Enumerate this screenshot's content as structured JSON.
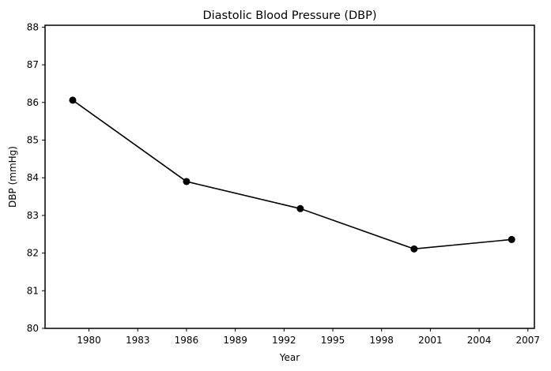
{
  "chart_data": {
    "type": "line",
    "title": "Diastolic Blood Pressure (DBP)",
    "xlabel": "Year",
    "ylabel": "DBP (mmHg)",
    "xlim": [
      1977.3,
      2007.4
    ],
    "ylim": [
      80,
      88.05
    ],
    "x_ticks": [
      1980,
      1983,
      1986,
      1989,
      1992,
      1995,
      1998,
      2001,
      2004,
      2007
    ],
    "y_ticks": [
      80,
      81,
      82,
      83,
      84,
      85,
      86,
      87,
      88
    ],
    "grid": false,
    "series": [
      {
        "x": [
          1979,
          1986,
          1993,
          2000,
          2006
        ],
        "y": [
          86.06,
          83.9,
          83.18,
          82.11,
          82.36
        ],
        "color": "#000000",
        "marker": "circle"
      }
    ]
  }
}
